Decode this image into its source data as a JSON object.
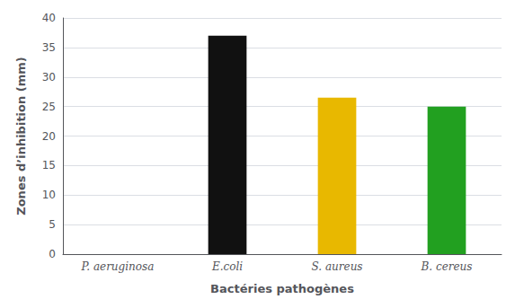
{
  "chart_data": {
    "type": "bar",
    "categories": [
      "P. aeruginosa",
      "E.coli",
      "S. aureus",
      "B. cereus"
    ],
    "values": [
      0,
      37,
      26.5,
      25
    ],
    "colors": [
      null,
      "#111111",
      "#E8B800",
      "#22A020"
    ],
    "xlabel": "Bactéries pathogènes",
    "ylabel": "Zones d’inhibition (mm)",
    "ylim": [
      0,
      40
    ],
    "yticks": [
      0,
      5,
      10,
      15,
      20,
      25,
      30,
      35,
      40
    ],
    "grid": true
  }
}
